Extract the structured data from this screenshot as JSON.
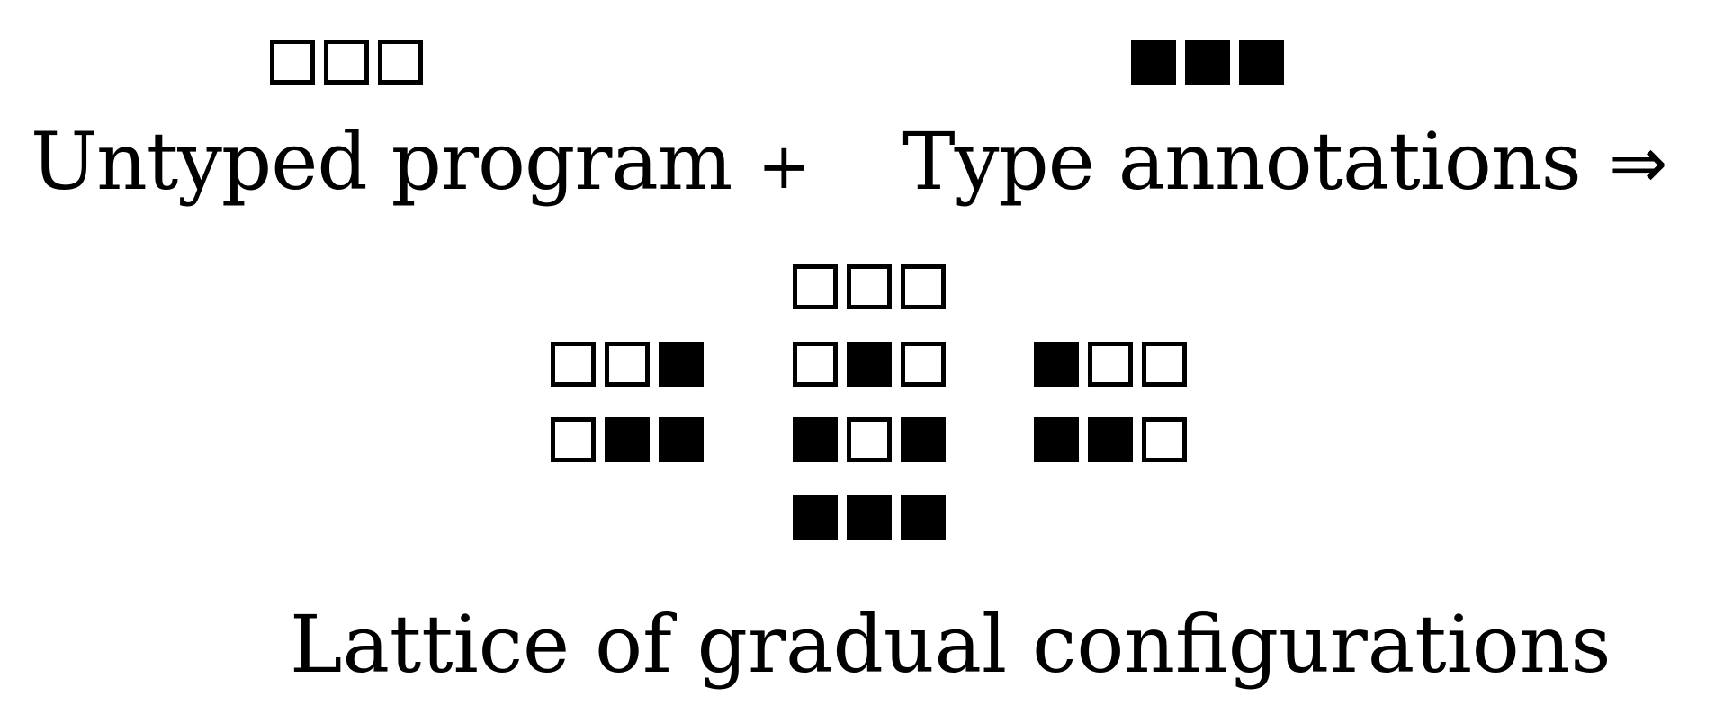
{
  "top": {
    "untyped": {
      "label": "Untyped program",
      "configuration": [
        false,
        false,
        false
      ]
    },
    "plus": "+",
    "annotations": {
      "label": "Type annotations",
      "configuration": [
        true,
        true,
        true
      ]
    },
    "implies": "⇒"
  },
  "lattice": {
    "label": "Lattice of gradual configurations",
    "nodes": {
      "top": [
        false,
        false,
        false
      ],
      "mid_left": [
        false,
        false,
        true
      ],
      "mid_center": [
        false,
        true,
        false
      ],
      "mid_right": [
        true,
        false,
        false
      ],
      "low_left": [
        false,
        true,
        true
      ],
      "low_center": [
        true,
        false,
        true
      ],
      "low_right": [
        true,
        true,
        false
      ],
      "bottom": [
        true,
        true,
        true
      ]
    }
  },
  "colors": {
    "ink": "#000000",
    "background": "#ffffff"
  }
}
